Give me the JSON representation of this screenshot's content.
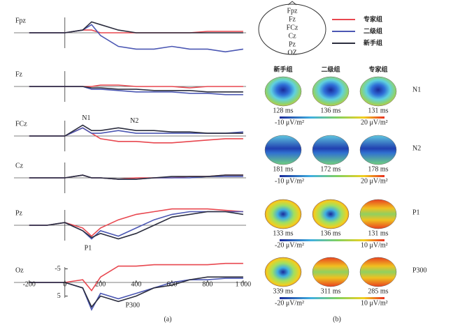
{
  "chart_data": {
    "type": "line",
    "legend": [
      {
        "name": "专家组",
        "color": "#e8474f"
      },
      {
        "name": "二级组",
        "color": "#4b57b3"
      },
      {
        "name": "新手组",
        "color": "#2b2d3e"
      }
    ],
    "electrode_map": [
      "Fpz",
      "Fz",
      "FCz",
      "Cz",
      "Pz",
      "OZ"
    ],
    "x": [
      -200,
      -100,
      0,
      100,
      150,
      200,
      300,
      400,
      500,
      600,
      700,
      800,
      900,
      1000
    ],
    "xlim": [
      -250,
      1020
    ],
    "ylim": [
      -8,
      11
    ],
    "xticks": [
      -200,
      0,
      200,
      400,
      600,
      800,
      {
        "value": 1000,
        "label": "1 000"
      }
    ],
    "yticks": [
      -5,
      5
    ],
    "panel_a_label": "(a)",
    "channels": [
      {
        "name": "Fpz",
        "series": [
          [
            0,
            0,
            0,
            -1,
            -1,
            0,
            0,
            0,
            0,
            0,
            0,
            -0.5,
            -0.5,
            -0.5
          ],
          [
            0,
            0,
            0,
            -1,
            -3,
            1,
            5,
            6,
            6,
            5,
            6,
            6,
            7,
            6
          ],
          [
            0,
            0,
            0,
            -1,
            -4,
            -3,
            -1,
            0,
            0,
            0,
            0,
            0,
            0,
            0
          ]
        ],
        "annotations": []
      },
      {
        "name": "Fz",
        "series": [
          [
            0,
            0,
            0,
            0,
            0,
            -0.5,
            -0.5,
            0,
            0,
            0,
            0.5,
            0,
            0,
            0
          ],
          [
            0,
            0,
            0,
            0,
            1,
            1,
            1.5,
            2,
            2,
            2,
            2.5,
            2.5,
            3,
            3
          ],
          [
            0,
            0,
            0,
            0,
            0.5,
            0.5,
            1,
            1,
            1.5,
            1.5,
            1.5,
            2,
            2,
            2
          ]
        ],
        "annotations": []
      },
      {
        "name": "FCz",
        "series": [
          [
            0,
            0,
            0,
            -3,
            -1,
            1,
            2,
            2,
            2.5,
            2.5,
            2,
            1.5,
            1,
            1
          ],
          [
            0,
            0,
            0,
            -3,
            -1,
            -1,
            -2,
            -1,
            -1,
            -1,
            -1,
            -1,
            -1,
            -1.5
          ],
          [
            0,
            0,
            0,
            -4,
            -2,
            -2,
            -3,
            -2,
            -2,
            -1.5,
            -1.5,
            -1,
            -1,
            -1
          ]
        ],
        "annotations": [
          "N1",
          "N2"
        ]
      },
      {
        "name": "Cz",
        "series": [
          [
            0,
            0,
            0,
            -1,
            0,
            0,
            0.5,
            0,
            0,
            0,
            -0.5,
            -0.5,
            -1,
            -1
          ],
          [
            0,
            0,
            0,
            -1,
            0,
            0,
            0.5,
            0.5,
            0,
            0,
            0,
            -0.5,
            -0.5,
            -0.5
          ],
          [
            0,
            0,
            0,
            -1,
            0,
            0,
            0.5,
            0.5,
            0,
            -0.5,
            -0.5,
            -0.5,
            -1,
            -1
          ]
        ],
        "annotations": []
      },
      {
        "name": "Pz",
        "series": [
          [
            0,
            0,
            -1,
            1,
            4,
            1,
            -2,
            -4,
            -5,
            -6,
            -6,
            -6,
            -5.5,
            -5
          ],
          [
            0,
            0,
            -1,
            2,
            5,
            2,
            4,
            1,
            -2,
            -4,
            -5,
            -5,
            -5,
            -5
          ],
          [
            0,
            0,
            -1,
            2,
            4.5,
            3,
            5,
            3,
            0,
            -3,
            -4,
            -5,
            -5,
            -4
          ]
        ],
        "annotations": [
          "P1"
        ]
      },
      {
        "name": "Oz",
        "series": [
          [
            0,
            0,
            0,
            -1,
            3,
            -2,
            -6,
            -6,
            -6.5,
            -6.5,
            -6.5,
            -6.5,
            -7,
            -7
          ],
          [
            0,
            0,
            0,
            2,
            10,
            4,
            6,
            4,
            2,
            0,
            -1,
            -1,
            -1.5,
            -1.5
          ],
          [
            0,
            0,
            0,
            2,
            9,
            5,
            7,
            5,
            2,
            1,
            -1,
            -2,
            -2,
            -2
          ]
        ],
        "annotations": [
          "P300"
        ]
      }
    ],
    "panel_b_label": "(b)",
    "map_columns": [
      "新手组",
      "二级组",
      "专家组"
    ],
    "map_rows": [
      {
        "component": "N1",
        "times": [
          "128 ms",
          "136 ms",
          "131 ms"
        ],
        "scale": [
          "-10 μV/m²",
          "20 μV/m²"
        ]
      },
      {
        "component": "N2",
        "times": [
          "181 ms",
          "172 ms",
          "178 ms"
        ],
        "scale": [
          "-10 μV/m²",
          "20 μV/m²"
        ]
      },
      {
        "component": "P1",
        "times": [
          "133 ms",
          "136 ms",
          "131 ms"
        ],
        "scale": [
          "-20 μV/m²",
          "10 μV/m²"
        ]
      },
      {
        "component": "P300",
        "times": [
          "339 ms",
          "311 ms",
          "285 ms"
        ],
        "scale": [
          "-20 μV/m²",
          "10 μV/m²"
        ]
      }
    ]
  }
}
